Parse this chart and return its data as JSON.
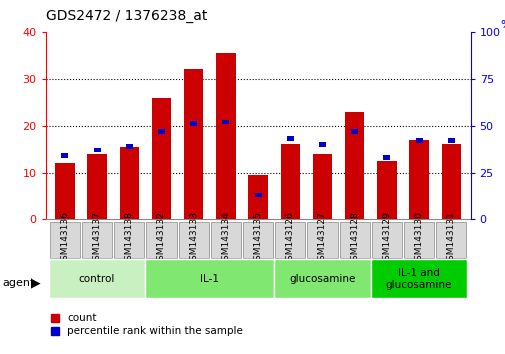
{
  "title": "GDS2472 / 1376238_at",
  "samples": [
    "GSM143136",
    "GSM143137",
    "GSM143138",
    "GSM143132",
    "GSM143133",
    "GSM143134",
    "GSM143135",
    "GSM143126",
    "GSM143127",
    "GSM143128",
    "GSM143129",
    "GSM143130",
    "GSM143131"
  ],
  "count_values": [
    12,
    14,
    15.5,
    26,
    32,
    35.5,
    9.5,
    16,
    14,
    23,
    12.5,
    17,
    16
  ],
  "percentile_values": [
    34,
    37,
    39,
    47,
    51,
    52,
    13,
    43,
    40,
    47,
    33,
    42,
    42
  ],
  "groups": [
    {
      "label": "control",
      "start": 0,
      "end": 3,
      "color": "#c8f0c0"
    },
    {
      "label": "IL-1",
      "start": 3,
      "end": 7,
      "color": "#80e870"
    },
    {
      "label": "glucosamine",
      "start": 7,
      "end": 10,
      "color": "#80e870"
    },
    {
      "label": "IL-1 and\nglucosamine",
      "start": 10,
      "end": 13,
      "color": "#00cc00"
    }
  ],
  "ylim_left": [
    0,
    40
  ],
  "ylim_right": [
    0,
    100
  ],
  "yticks_left": [
    0,
    10,
    20,
    30,
    40
  ],
  "yticks_right": [
    0,
    25,
    50,
    75,
    100
  ],
  "bar_color": "#cc0000",
  "percentile_color": "#0000cc",
  "background_color": "#ffffff",
  "agent_label": "agent",
  "tick_box_color": "#d8d8d8",
  "tick_box_edge": "#888888"
}
